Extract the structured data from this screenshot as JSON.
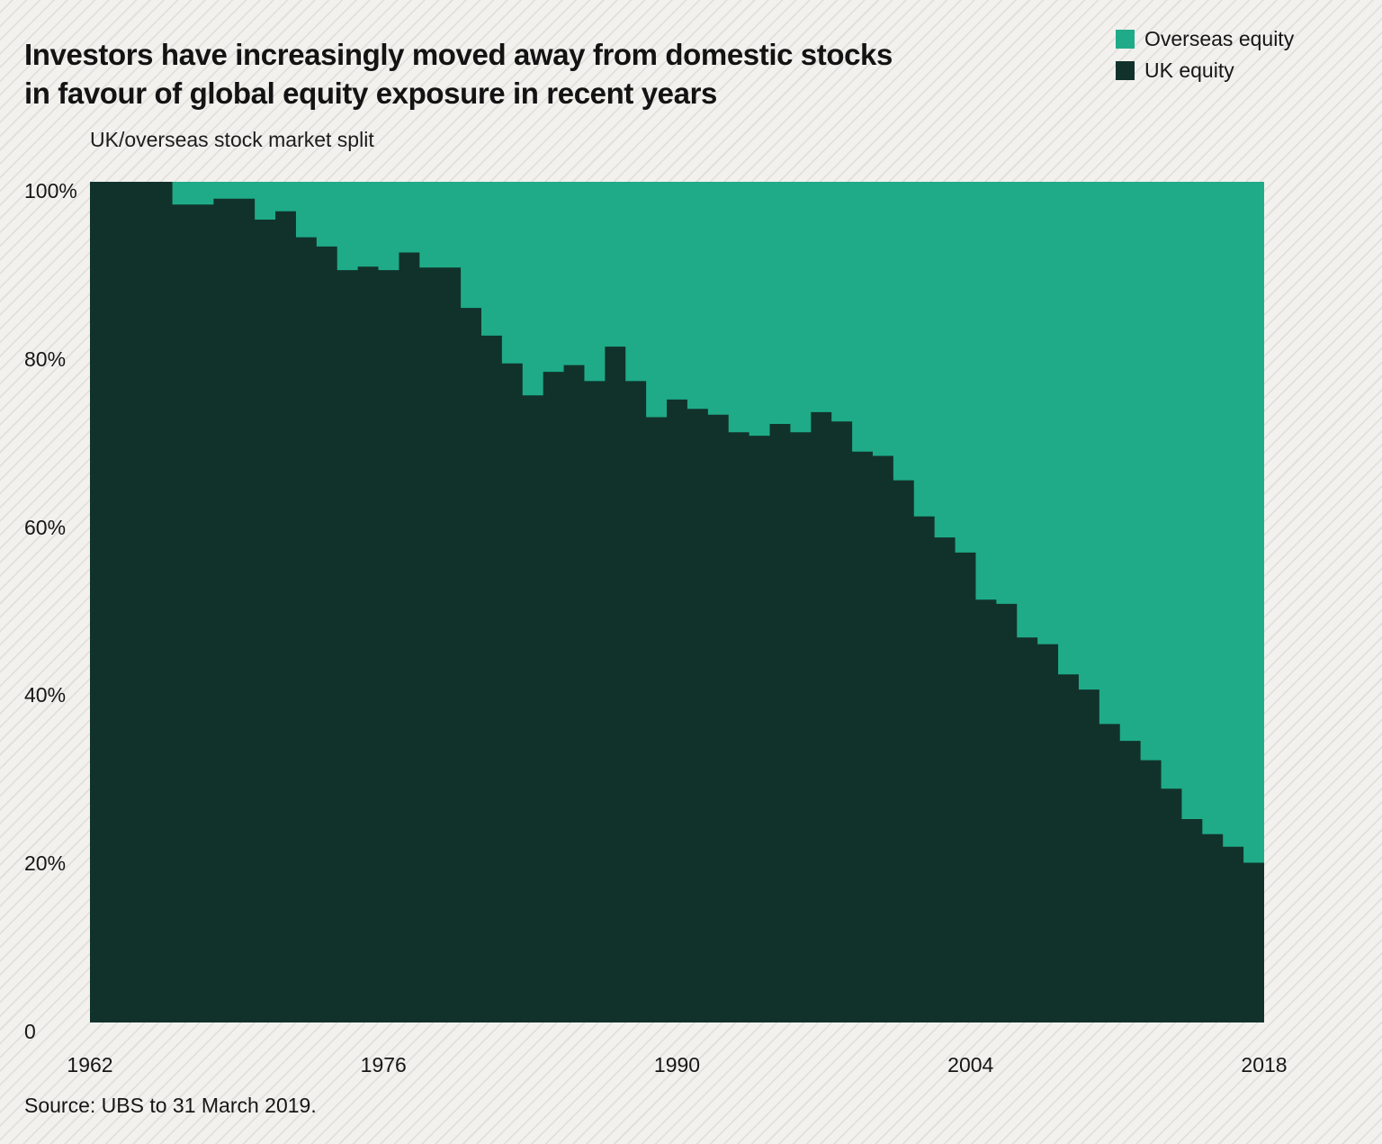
{
  "header": {
    "title_line1": "Investors have increasingly moved away from domestic stocks",
    "title_line2": "in favour of global equity exposure in recent years"
  },
  "subtitle": "UK/overseas stock market split",
  "source": "Source: UBS to 31 March 2019.",
  "legend": [
    {
      "label": "Overseas equity",
      "color": "#1fab88"
    },
    {
      "label": "UK equity",
      "color": "#11322b"
    }
  ],
  "colors": {
    "overseas_equity": "#1fab88",
    "uk_equity": "#11322b",
    "background": "#f2f1ee",
    "text": "#161616"
  },
  "chart_data": {
    "type": "area",
    "subtype": "stacked-percent-step",
    "title": "UK/overseas stock market split",
    "grid": false,
    "legend_position": "top-right",
    "x": [
      1962,
      1963,
      1964,
      1965,
      1966,
      1967,
      1968,
      1969,
      1970,
      1971,
      1972,
      1973,
      1974,
      1975,
      1976,
      1977,
      1978,
      1979,
      1980,
      1981,
      1982,
      1983,
      1984,
      1985,
      1986,
      1987,
      1988,
      1989,
      1990,
      1991,
      1992,
      1993,
      1994,
      1995,
      1996,
      1997,
      1998,
      1999,
      2000,
      2001,
      2002,
      2003,
      2004,
      2005,
      2006,
      2007,
      2008,
      2009,
      2010,
      2011,
      2012,
      2013,
      2014,
      2015,
      2016,
      2017,
      2018
    ],
    "series": [
      {
        "name": "UK equity",
        "color": "#11322b",
        "values": [
          100,
          100,
          100,
          100,
          97.3,
          97.3,
          98,
          98,
          95.5,
          96.5,
          93.4,
          92.3,
          89.5,
          89.9,
          89.5,
          91.6,
          89.8,
          89.8,
          85,
          81.7,
          78.4,
          74.6,
          77.4,
          78.2,
          76.3,
          80.4,
          76.3,
          72,
          74.1,
          73,
          72.3,
          70.2,
          69.8,
          71.2,
          70.2,
          72.6,
          71.5,
          67.9,
          67.4,
          64.5,
          60.2,
          57.7,
          55.9,
          50.3,
          49.8,
          45.8,
          45,
          41.4,
          39.6,
          35.5,
          33.5,
          31.2,
          27.8,
          24.2,
          22.4,
          20.9,
          19
        ]
      },
      {
        "name": "Overseas equity",
        "color": "#1fab88",
        "values": [
          0,
          0,
          0,
          0,
          2.7,
          2.7,
          2,
          2,
          4.5,
          3.5,
          6.6,
          7.7,
          10.5,
          10.1,
          10.5,
          8.4,
          10.2,
          10.2,
          15,
          18.3,
          21.6,
          25.4,
          22.6,
          21.8,
          23.7,
          19.6,
          23.7,
          28,
          25.9,
          27,
          27.7,
          29.8,
          30.2,
          28.8,
          29.8,
          27.4,
          28.5,
          32.1,
          32.6,
          35.5,
          39.8,
          42.3,
          44.1,
          49.7,
          50.2,
          54.2,
          55,
          58.6,
          60.4,
          64.5,
          66.5,
          68.8,
          72.2,
          75.8,
          77.6,
          79.1,
          81
        ]
      }
    ],
    "y_axis": {
      "range": [
        0,
        100
      ],
      "tick_labels": [
        "100%",
        "80%",
        "60%",
        "40%",
        "20%",
        "0"
      ],
      "tick_values": [
        100,
        80,
        60,
        40,
        20,
        0
      ]
    },
    "x_axis": {
      "tick_labels": [
        "1962",
        "1976",
        "1990",
        "2004",
        "2018"
      ],
      "tick_values": [
        1962,
        1976,
        1990,
        2004,
        2018
      ]
    }
  }
}
